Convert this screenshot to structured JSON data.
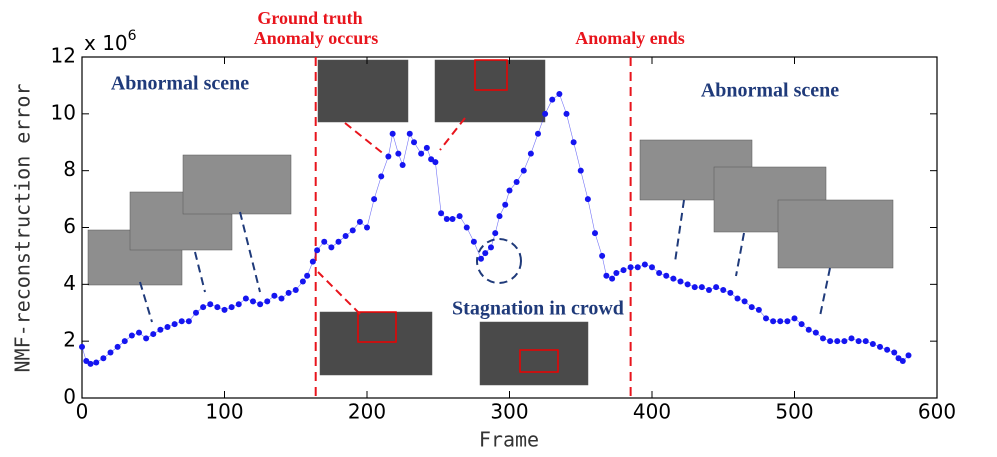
{
  "chart_data": {
    "type": "scatter",
    "x_label": "Frame",
    "y_label": "NMF-reconstruction error",
    "y_multiplier": {
      "base": "x 10",
      "exponent": "6"
    },
    "xlim": [
      0,
      600
    ],
    "xticks": [
      0,
      100,
      200,
      300,
      400,
      500,
      600
    ],
    "ylim": [
      0,
      12
    ],
    "yticks": [
      0,
      2,
      4,
      6,
      8,
      10,
      12
    ],
    "vlines": [
      {
        "x": 164,
        "color": "#e8141c"
      },
      {
        "x": 385,
        "color": "#e8141c"
      }
    ],
    "annotations": [
      "Ground truth",
      "Anomaly occurs",
      "Anomaly ends",
      "Abnormal scene",
      "Abnormal scene",
      "Stagnation in crowd"
    ],
    "series": [
      {
        "color": "#1515f0",
        "x": [
          0,
          3,
          6,
          10,
          15,
          20,
          25,
          30,
          35,
          40,
          45,
          50,
          55,
          60,
          65,
          70,
          75,
          80,
          85,
          90,
          95,
          100,
          105,
          110,
          115,
          120,
          125,
          130,
          135,
          140,
          145,
          150,
          155,
          158,
          162,
          165,
          170,
          175,
          180,
          185,
          190,
          195,
          200,
          205,
          210,
          215,
          218,
          222,
          225,
          230,
          233,
          238,
          242,
          245,
          248,
          252,
          256,
          260,
          265,
          270,
          275,
          280,
          283,
          287,
          290,
          293,
          297,
          300,
          305,
          310,
          315,
          320,
          325,
          330,
          335,
          340,
          345,
          350,
          355,
          360,
          365,
          368,
          372,
          375,
          380,
          385,
          390,
          395,
          400,
          405,
          410,
          415,
          420,
          425,
          430,
          435,
          440,
          445,
          450,
          455,
          460,
          465,
          470,
          475,
          480,
          485,
          490,
          495,
          500,
          505,
          510,
          515,
          520,
          525,
          530,
          535,
          540,
          545,
          550,
          555,
          560,
          565,
          570,
          573,
          576,
          580
        ],
        "values": [
          1.8,
          1.3,
          1.2,
          1.25,
          1.4,
          1.6,
          1.8,
          2.0,
          2.2,
          2.3,
          2.1,
          2.25,
          2.4,
          2.5,
          2.6,
          2.7,
          2.7,
          3.0,
          3.2,
          3.3,
          3.2,
          3.1,
          3.2,
          3.3,
          3.5,
          3.4,
          3.3,
          3.4,
          3.6,
          3.5,
          3.7,
          3.8,
          4.1,
          4.3,
          4.8,
          5.2,
          5.5,
          5.3,
          5.5,
          5.7,
          5.9,
          6.2,
          6.0,
          7.0,
          7.8,
          8.5,
          9.3,
          8.6,
          8.2,
          9.3,
          9.0,
          8.6,
          8.8,
          8.4,
          8.3,
          6.5,
          6.3,
          6.3,
          6.4,
          6.0,
          5.5,
          4.9,
          5.1,
          5.3,
          5.8,
          6.4,
          6.8,
          7.3,
          7.6,
          8.0,
          8.6,
          9.3,
          10.0,
          10.5,
          10.7,
          10.0,
          9.0,
          8.0,
          7.0,
          5.8,
          5.0,
          4.3,
          4.2,
          4.4,
          4.5,
          4.6,
          4.6,
          4.7,
          4.6,
          4.4,
          4.3,
          4.2,
          4.1,
          4.0,
          3.9,
          3.9,
          3.8,
          3.9,
          3.8,
          3.7,
          3.5,
          3.4,
          3.2,
          3.1,
          2.8,
          2.7,
          2.7,
          2.7,
          2.8,
          2.6,
          2.4,
          2.3,
          2.1,
          2.0,
          2.0,
          2.0,
          2.1,
          2.0,
          2.0,
          1.9,
          1.8,
          1.7,
          1.6,
          1.4,
          1.3,
          1.5
        ]
      }
    ]
  }
}
